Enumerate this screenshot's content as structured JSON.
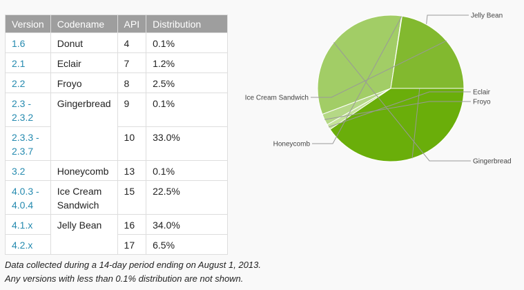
{
  "table": {
    "headers": [
      "Version",
      "Codename",
      "API",
      "Distribution"
    ],
    "rows": [
      {
        "version": "1.6",
        "codename": "Donut",
        "api": "4",
        "distribution": "0.1%"
      },
      {
        "version": "2.1",
        "codename": "Eclair",
        "api": "7",
        "distribution": "1.2%"
      },
      {
        "version": "2.2",
        "codename": "Froyo",
        "api": "8",
        "distribution": "2.5%"
      },
      {
        "version": "2.3 - 2.3.2",
        "codename": "Gingerbread",
        "api": "9",
        "distribution": "0.1%"
      },
      {
        "version": "2.3.3 - 2.3.7",
        "codename": "",
        "api": "10",
        "distribution": "33.0%"
      },
      {
        "version": "3.2",
        "codename": "Honeycomb",
        "api": "13",
        "distribution": "0.1%"
      },
      {
        "version": "4.0.3 - 4.0.4",
        "codename": "Ice Cream Sandwich",
        "api": "15",
        "distribution": "22.5%"
      },
      {
        "version": "4.1.x",
        "codename": "Jelly Bean",
        "api": "16",
        "distribution": "34.0%"
      },
      {
        "version": "4.2.x",
        "codename": "",
        "api": "17",
        "distribution": "6.5%"
      }
    ]
  },
  "notes": [
    "Data collected during a 14-day period ending on August 1, 2013.",
    "Any versions with less than 0.1% distribution are not shown."
  ],
  "chart_data": {
    "type": "pie",
    "slices": [
      {
        "label": "Jelly Bean",
        "value": 40.5,
        "color": "#6aae0a"
      },
      {
        "label": "Eclair",
        "value": 1.2,
        "color": "#c5e29a"
      },
      {
        "label": "Froyo",
        "value": 2.5,
        "color": "#b5d886"
      },
      {
        "label": "Gingerbread",
        "value": 33.1,
        "color": "#a2cd66"
      },
      {
        "label": "Honeycomb",
        "value": 0.1,
        "color": "#8dc04a"
      },
      {
        "label": "Ice Cream Sandwich",
        "value": 22.5,
        "color": "#82b92f"
      }
    ],
    "start_angle_deg": 0,
    "direction": "clockwise",
    "slice_border_color": "#ffffff",
    "leader_line_color": "#999999"
  }
}
